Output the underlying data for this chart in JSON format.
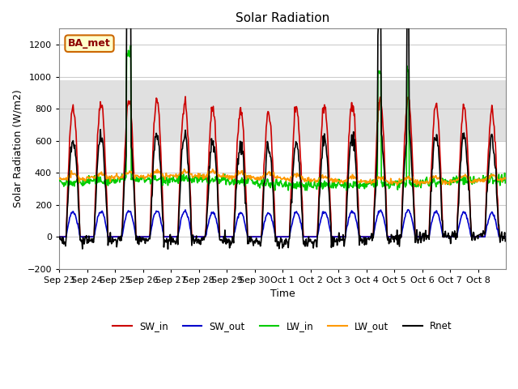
{
  "title": "Solar Radiation",
  "xlabel": "Time",
  "ylabel": "Solar Radiation (W/m2)",
  "ylim": [
    -200,
    1300
  ],
  "yticks": [
    -200,
    0,
    200,
    400,
    600,
    800,
    1000,
    1200
  ],
  "n_days": 16,
  "xtick_labels": [
    "Sep 23",
    "Sep 24",
    "Sep 25",
    "Sep 26",
    "Sep 27",
    "Sep 28",
    "Sep 29",
    "Sep 30",
    "Oct 1",
    "Oct 2",
    "Oct 3",
    "Oct 4",
    "Oct 5",
    "Oct 6",
    "Oct 7",
    "Oct 8"
  ],
  "line_colors": {
    "SW_in": "#cc0000",
    "SW_out": "#0000cc",
    "LW_in": "#00cc00",
    "LW_out": "#ff9900",
    "Rnet": "#000000"
  },
  "line_widths": {
    "SW_in": 1.2,
    "SW_out": 1.2,
    "LW_in": 1.2,
    "LW_out": 1.2,
    "Rnet": 1.2
  },
  "legend_label": "BA_met",
  "legend_box_color": "#ffffcc",
  "legend_box_edge": "#cc6600",
  "shaded_band": [
    600,
    980
  ],
  "shaded_color": "#e0e0e0",
  "background_color": "#ffffff",
  "grid_color": "#cccccc"
}
